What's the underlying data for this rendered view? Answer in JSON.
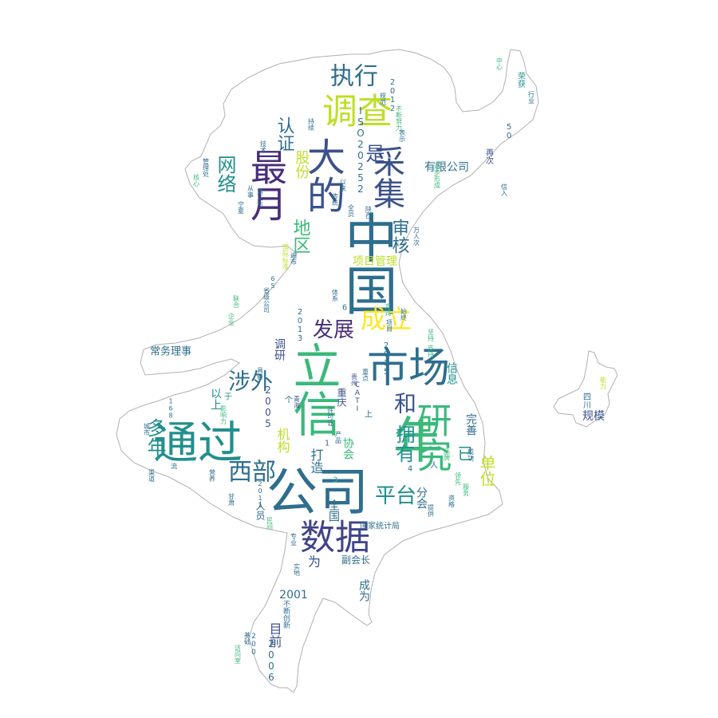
{
  "words": [
    {
      "text": "中国",
      "color": "#2e6e8e"
    },
    {
      "text": "公司",
      "color": "#2e6e8e"
    },
    {
      "text": "通过",
      "color": "#218f8d"
    },
    {
      "text": "年",
      "color": "#3ab97a"
    },
    {
      "text": "立信",
      "color": "#3ab97a"
    },
    {
      "text": "市场",
      "color": "#2e6e8e"
    },
    {
      "text": "大的",
      "color": "#3b528b"
    },
    {
      "text": "调查",
      "color": "#bddf26"
    },
    {
      "text": "研究",
      "color": "#3ab97a"
    },
    {
      "text": "数据",
      "color": "#414487"
    },
    {
      "text": "最月",
      "color": "#472d7b"
    },
    {
      "text": "采集",
      "color": "#3b528b"
    },
    {
      "text": "执行",
      "color": "#2e6e8e"
    },
    {
      "text": "成立",
      "color": "#fde725"
    },
    {
      "text": "发展",
      "color": "#472d7b"
    },
    {
      "text": "西部",
      "color": "#2e6e8e"
    },
    {
      "text": "涉外",
      "color": "#2e6e8e"
    },
    {
      "text": "多年",
      "color": "#218f8d"
    },
    {
      "text": "平台",
      "color": "#218f8d"
    },
    {
      "text": "拥有",
      "color": "#218f8d"
    },
    {
      "text": "和",
      "color": "#3b528b"
    },
    {
      "text": "网络",
      "color": "#218f8d"
    },
    {
      "text": "认证",
      "color": "#2e6e8e"
    },
    {
      "text": "是",
      "color": "#3b528b"
    },
    {
      "text": "地区",
      "color": "#3ab97a"
    },
    {
      "text": "审核",
      "color": "#2e6e8e"
    },
    {
      "text": "股份",
      "color": "#bddf26"
    },
    {
      "text": "有限公司",
      "color": "#2e6e8e"
    },
    {
      "text": "项目管理",
      "color": "#bddf26"
    },
    {
      "text": "单位",
      "color": "#bddf26"
    },
    {
      "text": "已",
      "color": "#218f8d"
    },
    {
      "text": "完善",
      "color": "#2e6e8e"
    },
    {
      "text": "信息",
      "color": "#218f8d"
    },
    {
      "text": "ISO20252",
      "color": "#2e6e8e"
    },
    {
      "text": "以上",
      "color": "#218f8d"
    },
    {
      "text": "机构",
      "color": "#bddf26"
    },
    {
      "text": "调研",
      "color": "#3b528b"
    },
    {
      "text": "打造",
      "color": "#2e6e8e"
    },
    {
      "text": "协会",
      "color": "#3ab97a"
    },
    {
      "text": "分会",
      "color": "#2e6e8e"
    },
    {
      "text": "全国",
      "color": "#2e6e8e"
    },
    {
      "text": "人员",
      "color": "#2e6e8e"
    },
    {
      "text": "2005",
      "color": "#3b528b"
    },
    {
      "text": "2001",
      "color": "#2e6e8e"
    },
    {
      "text": "为",
      "color": "#3b528b"
    },
    {
      "text": "副会长",
      "color": "#2e6e8e"
    },
    {
      "text": "成为",
      "color": "#2e6e8e"
    },
    {
      "text": "目前",
      "color": "#3b528b"
    },
    {
      "text": "2006",
      "color": "#2e6e8e"
    },
    {
      "text": "常务理事",
      "color": "#2e6e8e"
    },
    {
      "text": "规模",
      "color": "#3b528b"
    },
    {
      "text": "四川",
      "color": "#2e6e8e"
    },
    {
      "text": "能力",
      "color": "#bddf26"
    },
    {
      "text": "荣获",
      "color": "#218f8d"
    },
    {
      "text": "行业",
      "color": "#2e6e8e"
    },
    {
      "text": "50",
      "color": "#2e6e8e"
    },
    {
      "text": "再次",
      "color": "#3b528b"
    },
    {
      "text": "2015",
      "color": "#2e6e8e"
    },
    {
      "text": "2013",
      "color": "#2e6e8e"
    },
    {
      "text": "2012",
      "color": "#2e6e8e"
    },
    {
      "text": "2011",
      "color": "#2e6e8e"
    },
    {
      "text": "200",
      "color": "#2e6e8e"
    },
    {
      "text": "国家统计局",
      "color": "#2e6e8e"
    },
    {
      "text": "不断创新",
      "color": "#2e6e8e"
    },
    {
      "text": "重庆",
      "color": "#3b528b"
    },
    {
      "text": "CATI",
      "color": "#3b528b"
    },
    {
      "text": "宁夏",
      "color": "#2e6e8e"
    },
    {
      "text": "第三方",
      "color": "#2e6e8e"
    },
    {
      "text": "传统",
      "color": "#2e6e8e"
    },
    {
      "text": "管理处",
      "color": "#2e6e8e"
    },
    {
      "text": "核心",
      "color": "#3ab97a"
    },
    {
      "text": "从事",
      "color": "#2e6e8e"
    },
    {
      "text": "技术",
      "color": "#2e6e8e"
    },
    {
      "text": "持续",
      "color": "#2e6e8e"
    },
    {
      "text": "逐步形成",
      "color": "#3ab97a"
    },
    {
      "text": "万人次",
      "color": "#2e6e8e"
    },
    {
      "text": "遍布",
      "color": "#2e6e8e"
    },
    {
      "text": "体系",
      "color": "#2e6e8e"
    },
    {
      "text": "国际标准",
      "color": "#bddf26"
    },
    {
      "text": "65",
      "color": "#2e6e8e"
    },
    {
      "text": "省级公司",
      "color": "#2e6e8e"
    },
    {
      "text": "联合",
      "color": "#3ab97a"
    },
    {
      "text": "企业",
      "color": "#3ab97a"
    },
    {
      "text": "项目",
      "color": "#2e6e8e"
    },
    {
      "text": "坚持",
      "color": "#3ab97a"
    },
    {
      "text": "城市",
      "color": "#2e6e8e"
    },
    {
      "text": "一流",
      "color": "#2e6e8e"
    },
    {
      "text": "渠道",
      "color": "#2e6e8e"
    },
    {
      "text": "营养",
      "color": "#2e6e8e"
    },
    {
      "text": "民间",
      "color": "#3ab97a"
    },
    {
      "text": "专业",
      "color": "#2e6e8e"
    },
    {
      "text": "实地",
      "color": "#2e6e8e"
    },
    {
      "text": "访问室",
      "color": "#3ab97a"
    },
    {
      "text": "基础",
      "color": "#2e6e8e"
    },
    {
      "text": "甘肃",
      "color": "#2e6e8e"
    },
    {
      "text": "影响力",
      "color": "#3ab97a"
    },
    {
      "text": "许可证",
      "color": "#2e6e8e"
    },
    {
      "text": "产品",
      "color": "#2e6e8e"
    },
    {
      "text": "青海",
      "color": "#3b528b"
    },
    {
      "text": "具备",
      "color": "#2e6e8e"
    },
    {
      "text": "贵州",
      "color": "#3b528b"
    },
    {
      "text": "168",
      "color": "#2e6e8e"
    },
    {
      "text": "重点",
      "color": "#2e6e8e"
    },
    {
      "text": "支持",
      "color": "#3ab97a"
    },
    {
      "text": "提供",
      "color": "#2e6e8e"
    },
    {
      "text": "方式",
      "color": "#3ab97a"
    },
    {
      "text": "不断努力",
      "color": "#3ab97a"
    },
    {
      "text": "表示",
      "color": "#2e6e8e"
    },
    {
      "text": "规范",
      "color": "#2e6e8e"
    },
    {
      "text": "全员",
      "color": "#2e6e8e"
    },
    {
      "text": "以来",
      "color": "#2e6e8e"
    },
    {
      "text": "陕西",
      "color": "#2e6e8e"
    },
    {
      "text": "领先",
      "color": "#3ab97a"
    },
    {
      "text": "始终",
      "color": "#2e6e8e"
    },
    {
      "text": "品牌",
      "color": "#3ab97a"
    },
    {
      "text": "资格",
      "color": "#2e6e8e"
    },
    {
      "text": "服务",
      "color": "#3ab97a"
    },
    {
      "text": "成功",
      "color": "#2e6e8e"
    },
    {
      "text": "信入",
      "color": "#2e6e8e"
    },
    {
      "text": "中心",
      "color": "#3ab97a"
    },
    {
      "text": "3",
      "color": "#3ab97a"
    },
    {
      "text": "4",
      "color": "#2e6e8e"
    },
    {
      "text": "6",
      "color": "#2e6e8e"
    },
    {
      "text": "1",
      "color": "#2e6e8e"
    },
    {
      "text": "个",
      "color": "#2e6e8e"
    },
    {
      "text": "人",
      "color": "#2e6e8e"
    },
    {
      "text": "上",
      "color": "#2e6e8e"
    },
    {
      "text": "于",
      "color": "#218f8d"
    }
  ]
}
